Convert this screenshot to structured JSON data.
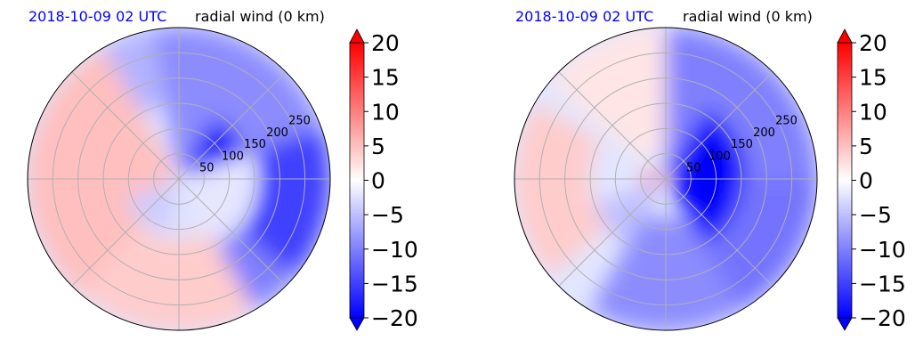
{
  "chart_data": [
    {
      "type": "heatmap",
      "projection": "polar",
      "title_left": "2018-10-09 02 UTC",
      "title_right": "radial wind (0 km)",
      "ring_labels": [
        "50",
        "100",
        "150",
        "200",
        "250"
      ],
      "rings": [
        50,
        100,
        150,
        200,
        250
      ],
      "r_max": 300,
      "grid": true,
      "colorbar": {
        "ticks": [
          20,
          15,
          10,
          5,
          0,
          -5,
          -10,
          -15,
          -20
        ],
        "tick_labels": [
          "20",
          "15",
          "10",
          "5",
          "0",
          "−5",
          "−10",
          "−15",
          "−20"
        ],
        "range": [
          -20,
          20
        ],
        "extend": "both",
        "cmap": "bwr"
      },
      "field_regions": [
        {
          "theta_deg": [
            20,
            100
          ],
          "r": [
            20,
            300
          ],
          "value": -9
        },
        {
          "theta_deg": [
            20,
            60
          ],
          "r": [
            25,
            140
          ],
          "value": -20
        },
        {
          "theta_deg": [
            -40,
            20
          ],
          "r": [
            160,
            300
          ],
          "value": -15
        },
        {
          "theta_deg": [
            -70,
            -40
          ],
          "r": [
            150,
            300
          ],
          "value": -10
        },
        {
          "theta_deg": [
            100,
            130
          ],
          "r": [
            150,
            300
          ],
          "value": -6
        },
        {
          "theta_deg": [
            120,
            230
          ],
          "r": [
            10,
            300
          ],
          "value": 5
        },
        {
          "theta_deg": [
            230,
            300
          ],
          "r": [
            120,
            300
          ],
          "value": 4
        },
        {
          "theta_deg": [
            200,
            260
          ],
          "r": [
            10,
            110
          ],
          "value": -4
        },
        {
          "theta_deg": [
            -60,
            20
          ],
          "r": [
            10,
            150
          ],
          "value": -2
        }
      ]
    },
    {
      "type": "heatmap",
      "projection": "polar",
      "title_left": "2018-10-09 02 UTC",
      "title_right": "radial wind (0 km)",
      "ring_labels": [
        "50",
        "100",
        "150",
        "200",
        "250"
      ],
      "rings": [
        50,
        100,
        150,
        200,
        250
      ],
      "r_max": 300,
      "grid": true,
      "colorbar": {
        "ticks": [
          20,
          15,
          10,
          5,
          0,
          -5,
          -10,
          -15,
          -20
        ],
        "tick_labels": [
          "20",
          "15",
          "10",
          "5",
          "0",
          "−5",
          "−10",
          "−15",
          "−20"
        ],
        "range": [
          -20,
          20
        ],
        "extend": "both",
        "cmap": "bwr"
      },
      "field_regions": [
        {
          "theta_deg": [
            0,
            90
          ],
          "r": [
            15,
            300
          ],
          "value": -10
        },
        {
          "theta_deg": [
            -60,
            60
          ],
          "r": [
            20,
            160
          ],
          "value": -20
        },
        {
          "theta_deg": [
            -90,
            0
          ],
          "r": [
            150,
            300
          ],
          "value": -11
        },
        {
          "theta_deg": [
            240,
            300
          ],
          "r": [
            80,
            300
          ],
          "value": -9
        },
        {
          "theta_deg": [
            90,
            140
          ],
          "r": [
            60,
            300
          ],
          "value": 2
        },
        {
          "theta_deg": [
            150,
            220
          ],
          "r": [
            150,
            300
          ],
          "value": 4
        },
        {
          "theta_deg": [
            160,
            215
          ],
          "r": [
            0,
            45
          ],
          "value": 12
        },
        {
          "theta_deg": [
            200,
            240
          ],
          "r": [
            20,
            150
          ],
          "value": -5
        }
      ]
    }
  ]
}
